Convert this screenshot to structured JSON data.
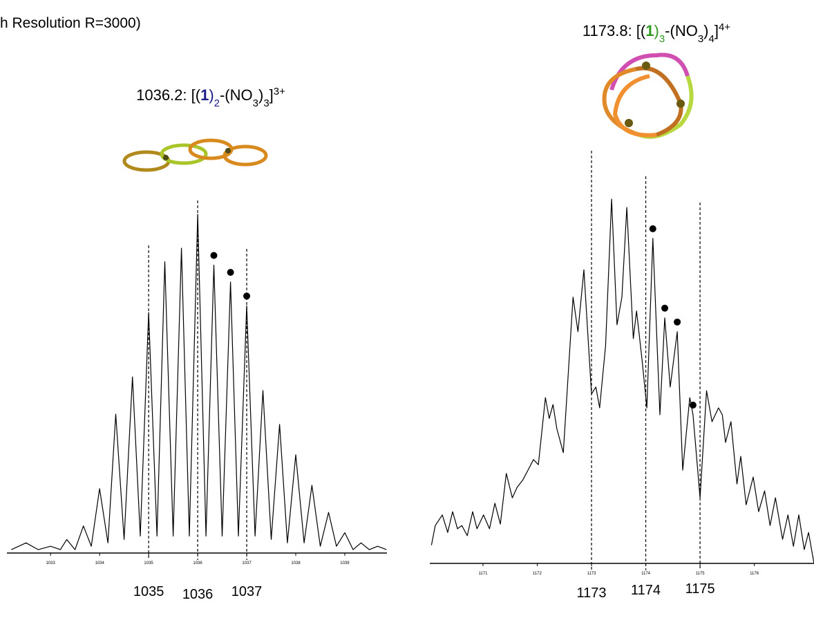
{
  "header_text": "h Resolution R=3000)",
  "chart_data": [
    {
      "type": "line",
      "title_parts": [
        "1036.2: [(",
        "1",
        ")",
        "2",
        "-(NO",
        "3",
        ")",
        "3",
        "]",
        "3+"
      ],
      "formula_color": "#1c1c8a",
      "color": "#000000",
      "x": [
        1032.2,
        1032.5,
        1032.75,
        1033.0,
        1033.2,
        1033.33,
        1033.5,
        1033.67,
        1033.83,
        1034.0,
        1034.17,
        1034.33,
        1034.5,
        1034.67,
        1034.83,
        1035.0,
        1035.17,
        1035.33,
        1035.5,
        1035.67,
        1035.83,
        1036.0,
        1036.17,
        1036.33,
        1036.5,
        1036.67,
        1036.83,
        1037.0,
        1037.17,
        1037.33,
        1037.5,
        1037.67,
        1037.83,
        1038.0,
        1038.17,
        1038.33,
        1038.5,
        1038.67,
        1038.83,
        1039.0,
        1039.17,
        1039.33,
        1039.5,
        1039.67,
        1039.85
      ],
      "values": [
        1,
        3,
        1,
        2,
        1,
        4,
        1,
        8,
        2,
        19,
        3,
        41,
        4,
        52,
        5,
        71,
        5,
        86,
        5,
        90,
        5,
        100,
        5,
        85,
        5,
        80,
        5,
        73,
        5,
        48,
        4,
        38,
        3,
        29,
        3,
        20,
        2,
        12,
        2,
        6,
        1,
        3,
        1,
        2,
        1
      ],
      "xlim": [
        1032.11,
        1039.86
      ],
      "xticks": [
        1033,
        1034,
        1035,
        1036,
        1037,
        1038,
        1039
      ],
      "reference_lines": [
        1035,
        1036,
        1037
      ],
      "marked_peaks": [
        1036.33,
        1036.67,
        1037.0
      ]
    },
    {
      "type": "line",
      "title_parts": [
        "1173.8: [(",
        "1",
        ")",
        "3",
        "-(NO",
        "3",
        ")",
        "4",
        "]",
        "4+"
      ],
      "formula_color": "#2e9a1e",
      "color": "#000000",
      "x": [
        1170.05,
        1170.12,
        1170.25,
        1170.35,
        1170.44,
        1170.53,
        1170.61,
        1170.71,
        1170.81,
        1170.89,
        1171.01,
        1171.12,
        1171.22,
        1171.32,
        1171.43,
        1171.54,
        1171.63,
        1171.73,
        1171.83,
        1171.93,
        1172.02,
        1172.15,
        1172.22,
        1172.29,
        1172.36,
        1172.48,
        1172.66,
        1172.75,
        1172.86,
        1173.0,
        1173.08,
        1173.15,
        1173.26,
        1173.37,
        1173.47,
        1173.56,
        1173.65,
        1173.77,
        1173.83,
        1173.93,
        1174.02,
        1174.13,
        1174.26,
        1174.35,
        1174.45,
        1174.58,
        1174.68,
        1174.81,
        1174.87,
        1175.0,
        1175.12,
        1175.22,
        1175.34,
        1175.41,
        1175.47,
        1175.57,
        1175.68,
        1175.75,
        1175.85,
        1175.98,
        1176.08,
        1176.19,
        1176.29,
        1176.39,
        1176.52,
        1176.62,
        1176.72,
        1176.82,
        1176.92,
        1177.0,
        1177.1
      ],
      "values": [
        5,
        10.4,
        13.3,
        8.5,
        14.2,
        9.5,
        10.4,
        7.6,
        14.2,
        9.5,
        13.3,
        9.5,
        16.5,
        10.8,
        24.7,
        18.0,
        20.9,
        22.8,
        25.6,
        28.5,
        27.1,
        45.5,
        39.8,
        43.6,
        37.0,
        30.4,
        73.1,
        63.6,
        80.6,
        46.5,
        48.4,
        42.7,
        59.8,
        100,
        65.5,
        73.1,
        97.7,
        61.7,
        69.3,
        56.0,
        42.7,
        89.2,
        40.8,
        67.4,
        48.4,
        63.6,
        25.6,
        45.5,
        40.8,
        18.0,
        47.4,
        38.9,
        42.7,
        40.8,
        33.2,
        38.9,
        21.8,
        29.4,
        16.1,
        23.7,
        14.2,
        19.9,
        10.4,
        18.0,
        6.6,
        13.3,
        4.7,
        13.3,
        3.8,
        8.5,
        0
      ],
      "xlim": [
        1170.02,
        1177.1
      ],
      "xticks": [
        1171,
        1172,
        1173,
        1174,
        1175,
        1176
      ],
      "reference_lines": [
        1173,
        1174,
        1175
      ],
      "marked_peaks": [
        1174.13,
        1174.35,
        1174.58,
        1174.87
      ]
    }
  ]
}
